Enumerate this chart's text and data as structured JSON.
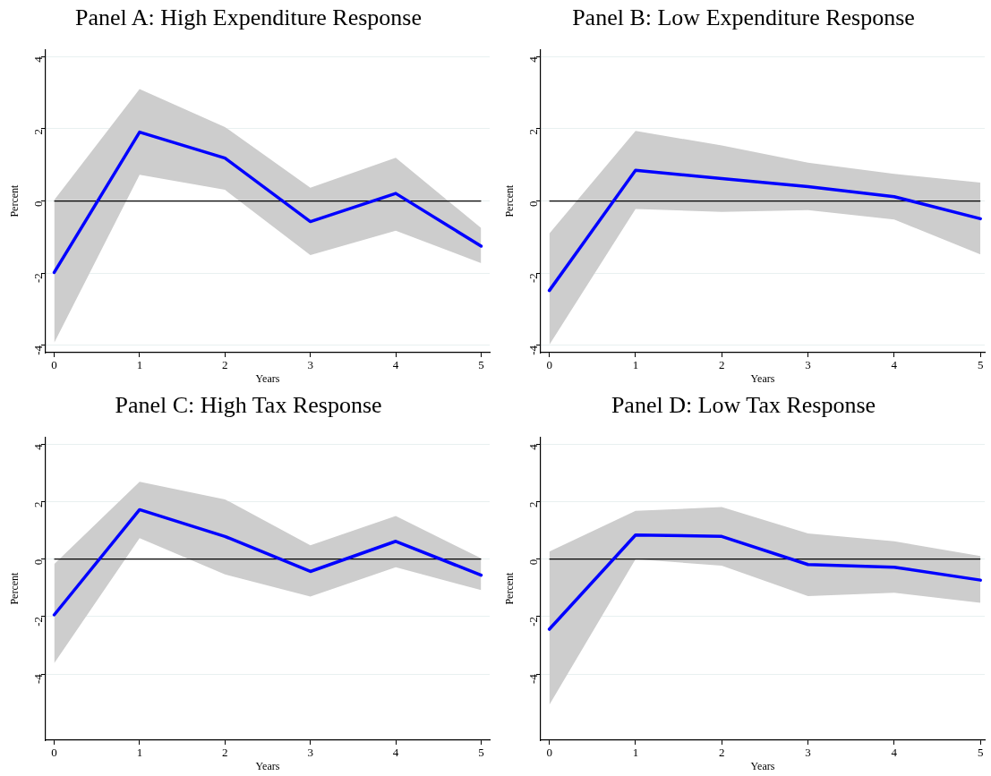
{
  "chart_data": [
    {
      "type": "line",
      "title": "Panel A: High Expenditure Response",
      "xlabel": "Years",
      "ylabel": "Percent",
      "x": [
        0,
        1,
        2,
        3,
        4,
        5
      ],
      "xlim": [
        -0.1,
        5.1
      ],
      "xticks": [
        0,
        1,
        2,
        3,
        4,
        5
      ],
      "ylim": [
        -4.2,
        4.2
      ],
      "yticks": [
        -4,
        -2,
        0,
        2,
        4
      ],
      "grid": "y",
      "legend": false,
      "marker": "none",
      "series": [
        {
          "color": "#0000ff",
          "values": [
            -1.98,
            1.91,
            1.19,
            -0.57,
            0.21,
            -1.25
          ],
          "lower": [
            -3.93,
            0.73,
            0.31,
            -1.5,
            -0.82,
            -1.72
          ],
          "upper": [
            0.03,
            3.1,
            2.05,
            0.37,
            1.2,
            -0.75
          ]
        }
      ],
      "ref_lines": [
        {
          "axis": "y",
          "value": 0,
          "color": "#000000"
        }
      ]
    },
    {
      "type": "line",
      "title": "Panel B: Low Expenditure Response",
      "xlabel": "Years",
      "ylabel": "Percent",
      "x": [
        0,
        1,
        2,
        3,
        4,
        5
      ],
      "xlim": [
        -0.1,
        5.05
      ],
      "xticks": [
        0,
        1,
        2,
        3,
        4,
        5
      ],
      "ylim": [
        -4.2,
        4.2
      ],
      "yticks": [
        -4,
        -2,
        0,
        2,
        4
      ],
      "grid": "y",
      "legend": false,
      "marker": "none",
      "series": [
        {
          "color": "#0000ff",
          "values": [
            -2.48,
            0.85,
            0.62,
            0.4,
            0.12,
            -0.49
          ],
          "lower": [
            -3.98,
            -0.22,
            -0.3,
            -0.25,
            -0.51,
            -1.48
          ],
          "upper": [
            -0.9,
            1.94,
            1.54,
            1.06,
            0.75,
            0.51
          ]
        }
      ],
      "ref_lines": [
        {
          "axis": "y",
          "value": 0,
          "color": "#000000"
        }
      ]
    },
    {
      "type": "line",
      "title": "Panel C: High Tax Response",
      "xlabel": "Years",
      "ylabel": "Percent",
      "x": [
        0,
        1,
        2,
        3,
        4,
        5
      ],
      "xlim": [
        -0.1,
        5.1
      ],
      "xticks": [
        0,
        1,
        2,
        3,
        4,
        5
      ],
      "ylim": [
        -6.3,
        4.25
      ],
      "yticks": [
        -4,
        -2,
        0,
        2,
        4
      ],
      "grid": "y",
      "legend": false,
      "marker": "none",
      "series": [
        {
          "color": "#0000ff",
          "values": [
            -1.94,
            1.72,
            0.79,
            -0.43,
            0.62,
            -0.56
          ],
          "lower": [
            -3.62,
            0.73,
            -0.53,
            -1.3,
            -0.28,
            -1.08
          ],
          "upper": [
            -0.17,
            2.69,
            2.08,
            0.48,
            1.5,
            0.03
          ]
        }
      ],
      "ref_lines": [
        {
          "axis": "y",
          "value": 0,
          "color": "#000000"
        }
      ]
    },
    {
      "type": "line",
      "title": "Panel D: Low Tax Response",
      "xlabel": "Years",
      "ylabel": "Percent",
      "x": [
        0,
        1,
        2,
        3,
        4,
        5
      ],
      "xlim": [
        -0.1,
        5.05
      ],
      "xticks": [
        0,
        1,
        2,
        3,
        4,
        5
      ],
      "ylim": [
        -6.3,
        4.25
      ],
      "yticks": [
        -4,
        -2,
        0,
        2,
        4
      ],
      "grid": "y",
      "legend": false,
      "marker": "none",
      "series": [
        {
          "color": "#0000ff",
          "values": [
            -2.44,
            0.84,
            0.79,
            -0.19,
            -0.28,
            -0.73
          ],
          "lower": [
            -5.07,
            0,
            -0.23,
            -1.29,
            -1.17,
            -1.52
          ],
          "upper": [
            0.26,
            1.68,
            1.81,
            0.89,
            0.62,
            0.11
          ]
        }
      ],
      "ref_lines": [
        {
          "axis": "y",
          "value": 0,
          "color": "#000000"
        }
      ]
    }
  ]
}
